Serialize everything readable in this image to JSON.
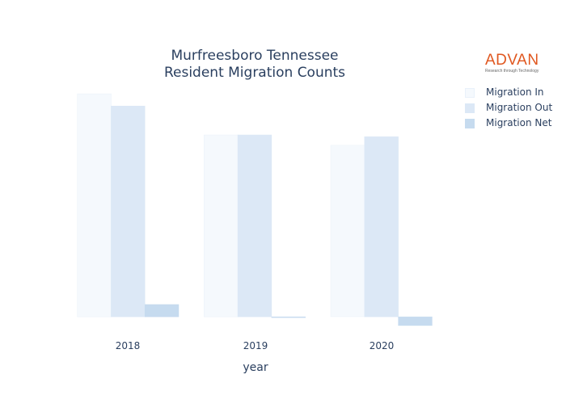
{
  "chart_data": {
    "type": "bar",
    "title_lines": [
      "Murfreesboro Tennessee",
      "Resident Migration Counts"
    ],
    "xlabel": "year",
    "ylabel": "",
    "categories": [
      "2018",
      "2019",
      "2020"
    ],
    "series": [
      {
        "name": "Migration In",
        "values": [
          2550,
          2080,
          1960
        ],
        "color": "#f5f9fd",
        "stroke": "#e9f1fa"
      },
      {
        "name": "Migration Out",
        "values": [
          2410,
          2080,
          2060
        ],
        "color": "#dce8f6",
        "stroke": "#dce8f6"
      },
      {
        "name": "Migration Net",
        "values": [
          140,
          0,
          -100
        ],
        "color": "#c6dbef",
        "stroke": "#c6dbef"
      }
    ],
    "ylim": [
      -110,
      2560
    ],
    "grid": false,
    "legend_position": "top-right"
  },
  "logo": {
    "word": "ADVAN",
    "tagline": "Research through Technology"
  }
}
